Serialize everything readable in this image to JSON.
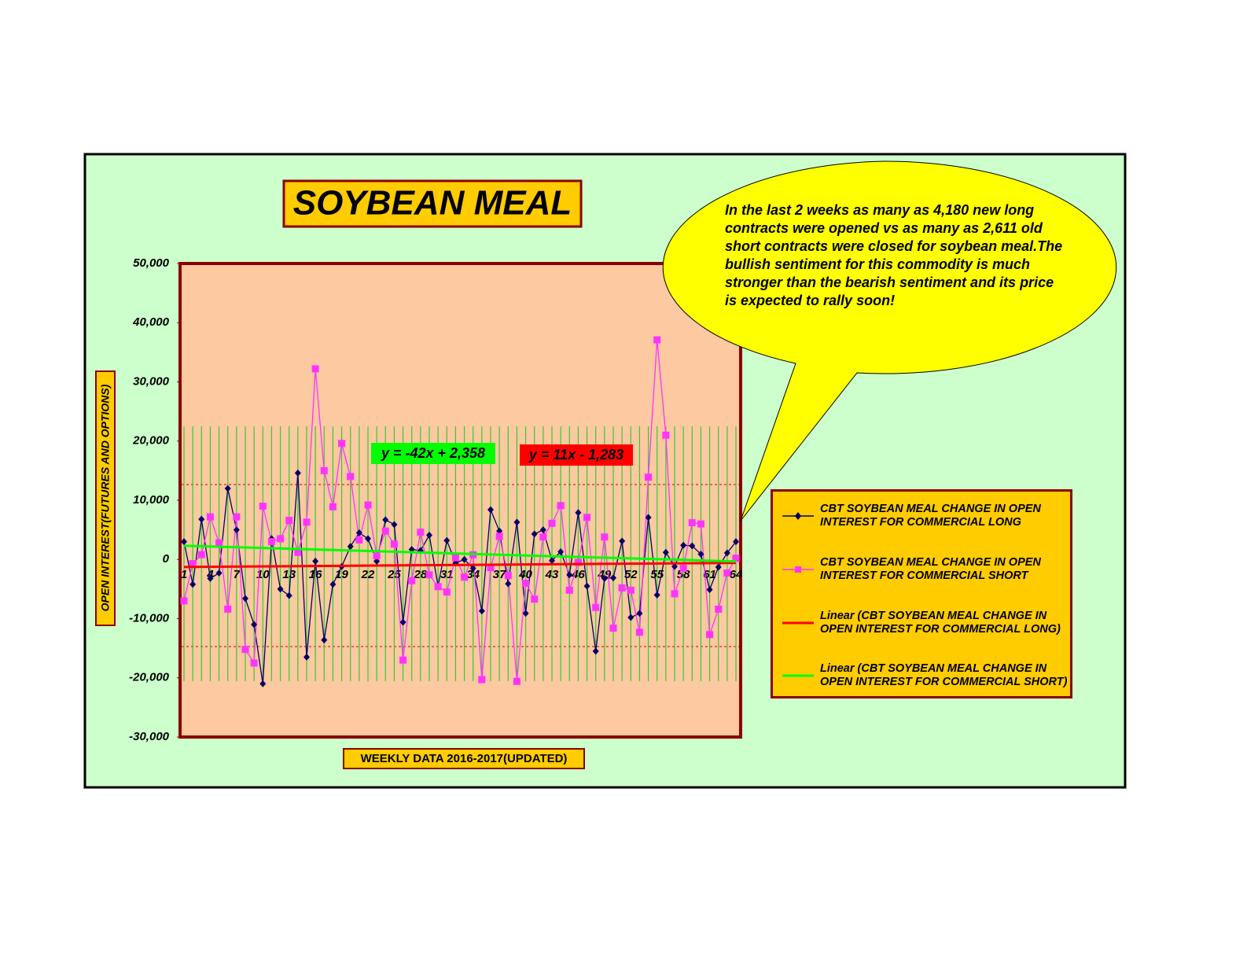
{
  "chart_data": {
    "type": "line",
    "title": "SOYBEAN MEAL",
    "x_label": "WEEKLY DATA 2016-2017(UPDATED)",
    "y_label": "OPEN INTEREST(FUTURES AND OPTIONS)",
    "annotation": "In the last 2 weeks as many as 4,180 new long contracts were opened vs as many as 2,611 old short contracts were closed for soybean meal.The bullish sentiment for this commodity is much stronger than the bearish sentiment and its price is expected to rally soon!",
    "categories": [
      "1",
      null,
      null,
      "4",
      null,
      null,
      "7",
      null,
      null,
      "10",
      null,
      null,
      "13",
      null,
      null,
      "16",
      null,
      null,
      "19",
      null,
      null,
      "22",
      null,
      null,
      "25",
      null,
      null,
      "28",
      null,
      null,
      "31",
      null,
      null,
      "34",
      null,
      null,
      "37",
      null,
      null,
      "40",
      null,
      null,
      "43",
      null,
      null,
      "46",
      null,
      null,
      "49",
      null,
      null,
      "52",
      null,
      null,
      "55",
      null,
      null,
      "58",
      null,
      null,
      "61",
      null,
      null,
      "64"
    ],
    "series": [
      {
        "name": "CBT SOYBEAN MEAL CHANGE IN OPEN INTEREST FOR COMMERCIAL LONG",
        "color": "#000066",
        "marker": "diamond",
        "values": [
          3000,
          -4200,
          6800,
          -3200,
          -2300,
          12000,
          5000,
          -6600,
          -11000,
          -21000,
          3500,
          -5000,
          -6100,
          14600,
          -16500,
          -300,
          -13600,
          -4200,
          -1200,
          2200,
          4500,
          3500,
          -300,
          6700,
          5900,
          -10600,
          1700,
          1500,
          4100,
          -4500,
          3200,
          -600,
          0,
          -1500,
          -8700,
          8400,
          4800,
          -4100,
          6300,
          -9100,
          4300,
          5000,
          -200,
          1300,
          -2600,
          7900,
          -4500,
          -15500,
          -3200,
          -3100,
          3100,
          -9800,
          -9100,
          7100,
          -6000,
          1200,
          -1200,
          2400,
          2300,
          900,
          -5100,
          -1300,
          1100,
          3000
        ]
      },
      {
        "name": "CBT SOYBEAN MEAL CHANGE IN OPEN INTEREST FOR COMMERCIAL SHORT",
        "color": "#ff33ff",
        "marker": "square",
        "values": [
          -7000,
          -700,
          800,
          7200,
          2800,
          -8400,
          7200,
          -15200,
          -17500,
          9000,
          3000,
          3500,
          6600,
          1200,
          6300,
          32200,
          15000,
          8900,
          19600,
          14000,
          3300,
          9200,
          600,
          4800,
          2600,
          -17000,
          -3600,
          4600,
          -2600,
          -4600,
          -5500,
          300,
          -3000,
          800,
          -20300,
          -1400,
          3900,
          -2700,
          -20600,
          -4000,
          -6700,
          3800,
          6100,
          9100,
          -5200,
          -500,
          7100,
          -8100,
          3800,
          -11600,
          -4800,
          -5200,
          -12300,
          13900,
          37100,
          21000,
          -5800,
          -1500,
          6200,
          6000,
          -12700,
          -8400,
          -2300,
          200
        ]
      }
    ],
    "trendlines": [
      {
        "name": "Linear (CBT SOYBEAN MEAL CHANGE IN OPEN INTEREST FOR COMMERCIAL LONG)",
        "color": "#ff0000",
        "label": "y = 11x - 1,283",
        "x": [
          1,
          64
        ],
        "values": [
          -1272,
          -579
        ]
      },
      {
        "name": "Linear (CBT SOYBEAN MEAL CHANGE IN OPEN INTEREST FOR COMMERCIAL SHORT)",
        "color": "#00ff00",
        "label": "y = -42x + 2,358",
        "x": [
          1,
          64
        ],
        "values": [
          2316,
          -330
        ]
      }
    ],
    "ylim": [
      -30000,
      50000
    ],
    "yticks": [
      {
        "value": 50000,
        "label": "50,000"
      },
      {
        "value": 40000,
        "label": "40,000"
      },
      {
        "value": 30000,
        "label": "30,000"
      },
      {
        "value": 20000,
        "label": "20,000"
      },
      {
        "value": 10000,
        "label": "10,000"
      },
      0,
      {
        "value": -10000,
        "label": "-10,000"
      },
      {
        "value": -20000,
        "label": "-20,000"
      },
      {
        "value": -30000,
        "label": "-30,000"
      }
    ],
    "grid": true
  }
}
